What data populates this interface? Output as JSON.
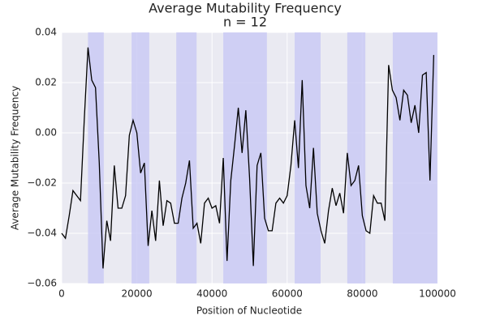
{
  "chart_data": {
    "type": "line",
    "title": "Average Mutability Frequency",
    "subtitle": "n = 12",
    "xlabel": "Position of Nucleotide",
    "ylabel": "Average Mutability Frequency",
    "color": "#000000",
    "span_color": "#c8c8f4",
    "background": "#eaeaf2",
    "grid": true,
    "x": [
      0,
      1000,
      2000,
      3000,
      4000,
      5000,
      6000,
      7000,
      8000,
      9000,
      10000,
      11000,
      12000,
      13000,
      14000,
      15000,
      16000,
      17000,
      18000,
      19000,
      20000,
      21000,
      22000,
      23000,
      24000,
      25000,
      26000,
      27000,
      28000,
      29000,
      30000,
      31000,
      32000,
      33000,
      34000,
      35000,
      36000,
      37000,
      38000,
      39000,
      40000,
      41000,
      42000,
      43000,
      44000,
      45000,
      46000,
      47000,
      48000,
      49000,
      50000,
      51000,
      52000,
      53000,
      54000,
      55000,
      56000,
      57000,
      58000,
      59000,
      60000,
      61000,
      62000,
      63000,
      64000,
      65000,
      66000,
      67000,
      68000,
      69000,
      70000,
      71000,
      72000,
      73000,
      74000,
      75000,
      76000,
      77000,
      78000,
      79000,
      80000,
      81000,
      82000,
      83000,
      84000,
      85000,
      86000,
      87000,
      88000,
      89000,
      90000,
      91000,
      92000,
      93000,
      94000,
      95000,
      96000,
      97000,
      98000,
      99000
    ],
    "values": [
      -0.04,
      -0.042,
      -0.033,
      -0.023,
      -0.025,
      -0.027,
      0.005,
      0.034,
      0.021,
      0.018,
      -0.012,
      -0.054,
      -0.035,
      -0.043,
      -0.013,
      -0.03,
      -0.03,
      -0.025,
      -0.001,
      0.005,
      0.0,
      -0.016,
      -0.012,
      -0.045,
      -0.031,
      -0.043,
      -0.019,
      -0.037,
      -0.027,
      -0.028,
      -0.036,
      -0.036,
      -0.026,
      -0.02,
      -0.011,
      -0.038,
      -0.036,
      -0.044,
      -0.028,
      -0.026,
      -0.03,
      -0.029,
      -0.036,
      -0.01,
      -0.051,
      -0.019,
      -0.005,
      0.01,
      -0.008,
      0.009,
      -0.018,
      -0.053,
      -0.013,
      -0.008,
      -0.034,
      -0.039,
      -0.039,
      -0.028,
      -0.026,
      -0.028,
      -0.025,
      -0.013,
      0.005,
      -0.014,
      0.021,
      -0.021,
      -0.03,
      -0.006,
      -0.032,
      -0.039,
      -0.044,
      -0.031,
      -0.022,
      -0.029,
      -0.024,
      -0.032,
      -0.008,
      -0.021,
      -0.019,
      -0.013,
      -0.033,
      -0.039,
      -0.04,
      -0.025,
      -0.028,
      -0.028,
      -0.035,
      0.027,
      0.017,
      0.014,
      0.005,
      0.017,
      0.015,
      0.004,
      0.011,
      0.0,
      0.023,
      0.024,
      -0.019,
      0.031
    ],
    "spans": [
      [
        7000,
        11200
      ],
      [
        18600,
        23300
      ],
      [
        30500,
        35900
      ],
      [
        43000,
        54600
      ],
      [
        62000,
        68900
      ],
      [
        76000,
        80800
      ],
      [
        88100,
        100000
      ]
    ],
    "xlim": [
      0,
      100000
    ],
    "ylim": [
      -0.06,
      0.04
    ],
    "xticks": [
      0,
      20000,
      40000,
      60000,
      80000,
      100000
    ],
    "yticks": [
      {
        "value": -0.06,
        "label": "−0.06"
      },
      {
        "value": -0.04,
        "label": "−0.04"
      },
      {
        "value": -0.02,
        "label": "−0.02"
      },
      {
        "value": 0,
        "label": "0.00"
      },
      {
        "value": 0.02,
        "label": "0.02"
      },
      {
        "value": 0.04,
        "label": "0.04"
      }
    ]
  }
}
